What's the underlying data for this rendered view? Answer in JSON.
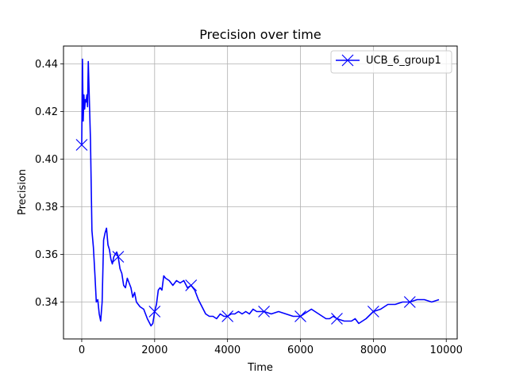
{
  "chart_data": {
    "type": "line",
    "title": "Precision over time",
    "xlabel": "Time",
    "ylabel": "Precision",
    "xlim": [
      -500,
      10300
    ],
    "ylim": [
      0.3245,
      0.4475
    ],
    "xticks": [
      0,
      2000,
      4000,
      6000,
      8000,
      10000
    ],
    "yticks": [
      0.34,
      0.36,
      0.38,
      0.4,
      0.42,
      0.44
    ],
    "ytick_labels": [
      "0.34",
      "0.36",
      "0.38",
      "0.40",
      "0.42",
      "0.44"
    ],
    "grid": true,
    "legend_position": "top-right",
    "series": [
      {
        "name": "UCB_6_group1",
        "color": "#0000ff",
        "marker": "x",
        "markers_x": [
          0,
          1000,
          2000,
          3000,
          4000,
          5000,
          6000,
          7000,
          8000,
          9000
        ],
        "x": [
          0,
          20,
          40,
          60,
          80,
          100,
          120,
          140,
          160,
          180,
          200,
          240,
          280,
          320,
          360,
          400,
          440,
          480,
          520,
          560,
          600,
          640,
          680,
          720,
          760,
          800,
          840,
          880,
          920,
          960,
          1000,
          1050,
          1100,
          1150,
          1200,
          1250,
          1300,
          1350,
          1400,
          1450,
          1500,
          1600,
          1700,
          1800,
          1900,
          1950,
          2000,
          2050,
          2100,
          2150,
          2200,
          2250,
          2300,
          2400,
          2500,
          2600,
          2700,
          2800,
          2900,
          3000,
          3100,
          3200,
          3300,
          3400,
          3500,
          3600,
          3700,
          3800,
          3900,
          4000,
          4100,
          4200,
          4300,
          4400,
          4500,
          4600,
          4700,
          4800,
          4900,
          5000,
          5200,
          5400,
          5600,
          5800,
          6000,
          6100,
          6200,
          6300,
          6400,
          6500,
          6600,
          6700,
          6800,
          6900,
          7000,
          7200,
          7400,
          7500,
          7600,
          7800,
          8000,
          8200,
          8400,
          8600,
          8800,
          9000,
          9200,
          9400,
          9600,
          9800
        ],
        "y": [
          0.406,
          0.442,
          0.416,
          0.427,
          0.421,
          0.425,
          0.424,
          0.427,
          0.422,
          0.441,
          0.43,
          0.408,
          0.37,
          0.363,
          0.352,
          0.34,
          0.341,
          0.335,
          0.332,
          0.34,
          0.366,
          0.369,
          0.371,
          0.364,
          0.362,
          0.358,
          0.356,
          0.359,
          0.36,
          0.361,
          0.359,
          0.354,
          0.352,
          0.347,
          0.346,
          0.35,
          0.348,
          0.346,
          0.342,
          0.344,
          0.34,
          0.338,
          0.337,
          0.333,
          0.33,
          0.331,
          0.336,
          0.339,
          0.345,
          0.346,
          0.345,
          0.351,
          0.35,
          0.349,
          0.347,
          0.349,
          0.348,
          0.349,
          0.346,
          0.347,
          0.345,
          0.341,
          0.338,
          0.335,
          0.334,
          0.334,
          0.333,
          0.335,
          0.334,
          0.334,
          0.335,
          0.335,
          0.336,
          0.335,
          0.336,
          0.335,
          0.337,
          0.336,
          0.336,
          0.336,
          0.335,
          0.336,
          0.335,
          0.334,
          0.334,
          0.335,
          0.336,
          0.337,
          0.336,
          0.335,
          0.334,
          0.333,
          0.333,
          0.334,
          0.333,
          0.332,
          0.332,
          0.333,
          0.331,
          0.333,
          0.336,
          0.337,
          0.339,
          0.339,
          0.34,
          0.34,
          0.341,
          0.341,
          0.34,
          0.341
        ]
      }
    ]
  }
}
